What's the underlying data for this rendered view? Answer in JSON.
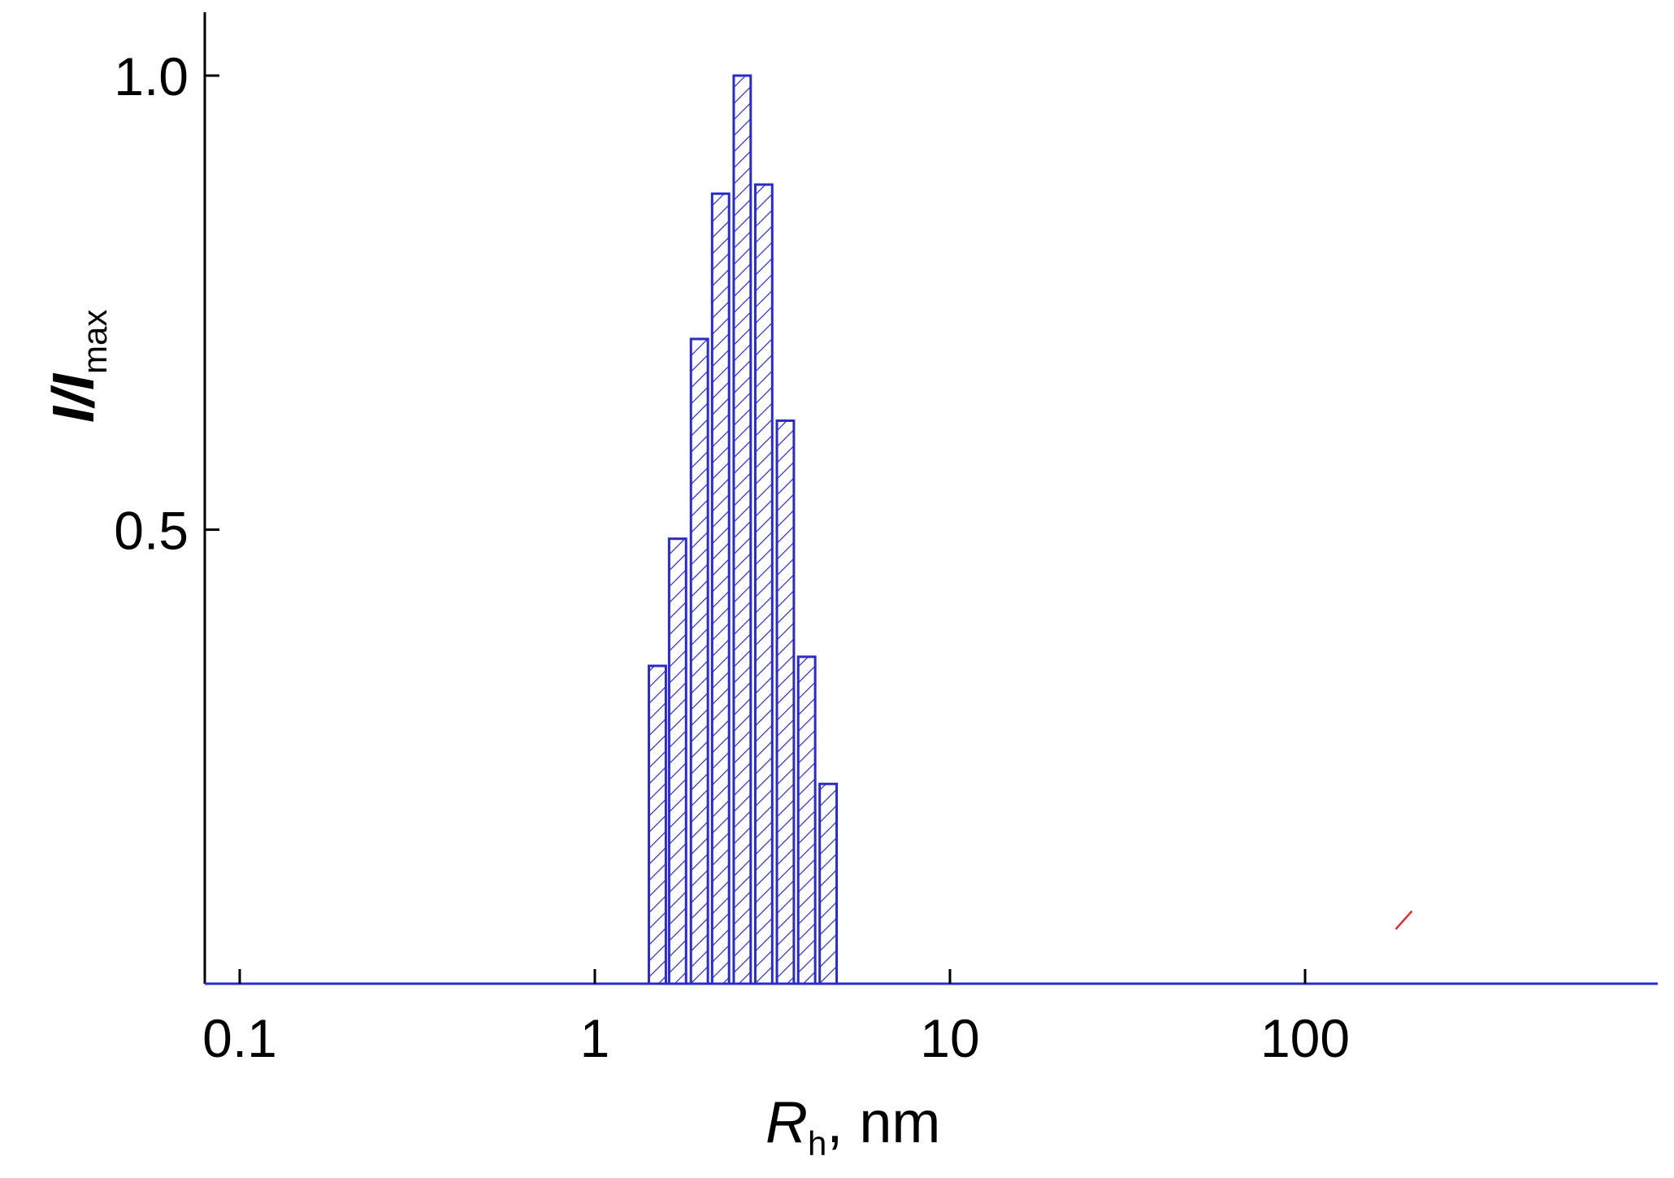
{
  "chart_data": {
    "type": "bar",
    "x_scale": "log",
    "xlim": [
      0.08,
      900
    ],
    "ylim": [
      0.0,
      1.07
    ],
    "x_ticks": [
      {
        "value": 0.1,
        "label": "0.1"
      },
      {
        "value": 1,
        "label": "1"
      },
      {
        "value": 10,
        "label": "10"
      },
      {
        "value": 100,
        "label": "100"
      }
    ],
    "y_ticks": [
      {
        "value": 0.5,
        "label": "0.5"
      },
      {
        "value": 1.0,
        "label": "1.0"
      }
    ],
    "xlabel": {
      "main": "R",
      "sub": "h",
      "rest": ", nm"
    },
    "ylabel": {
      "main": "I/I",
      "sub": "max"
    },
    "series": [
      {
        "x": [
          1.5,
          1.71,
          1.97,
          2.26,
          2.6,
          2.99,
          3.44,
          3.95,
          4.54
        ],
        "values": [
          0.35,
          0.49,
          0.71,
          0.87,
          1.0,
          0.88,
          0.62,
          0.36,
          0.22
        ],
        "color": "#2b2bc8",
        "hatch": "diagonal"
      }
    ],
    "grid": false,
    "annotations": [
      {
        "type": "short-red-line-segment",
        "x": [
          180,
          200
        ],
        "y": [
          0.06,
          0.08
        ],
        "color": "#e03030"
      }
    ]
  }
}
